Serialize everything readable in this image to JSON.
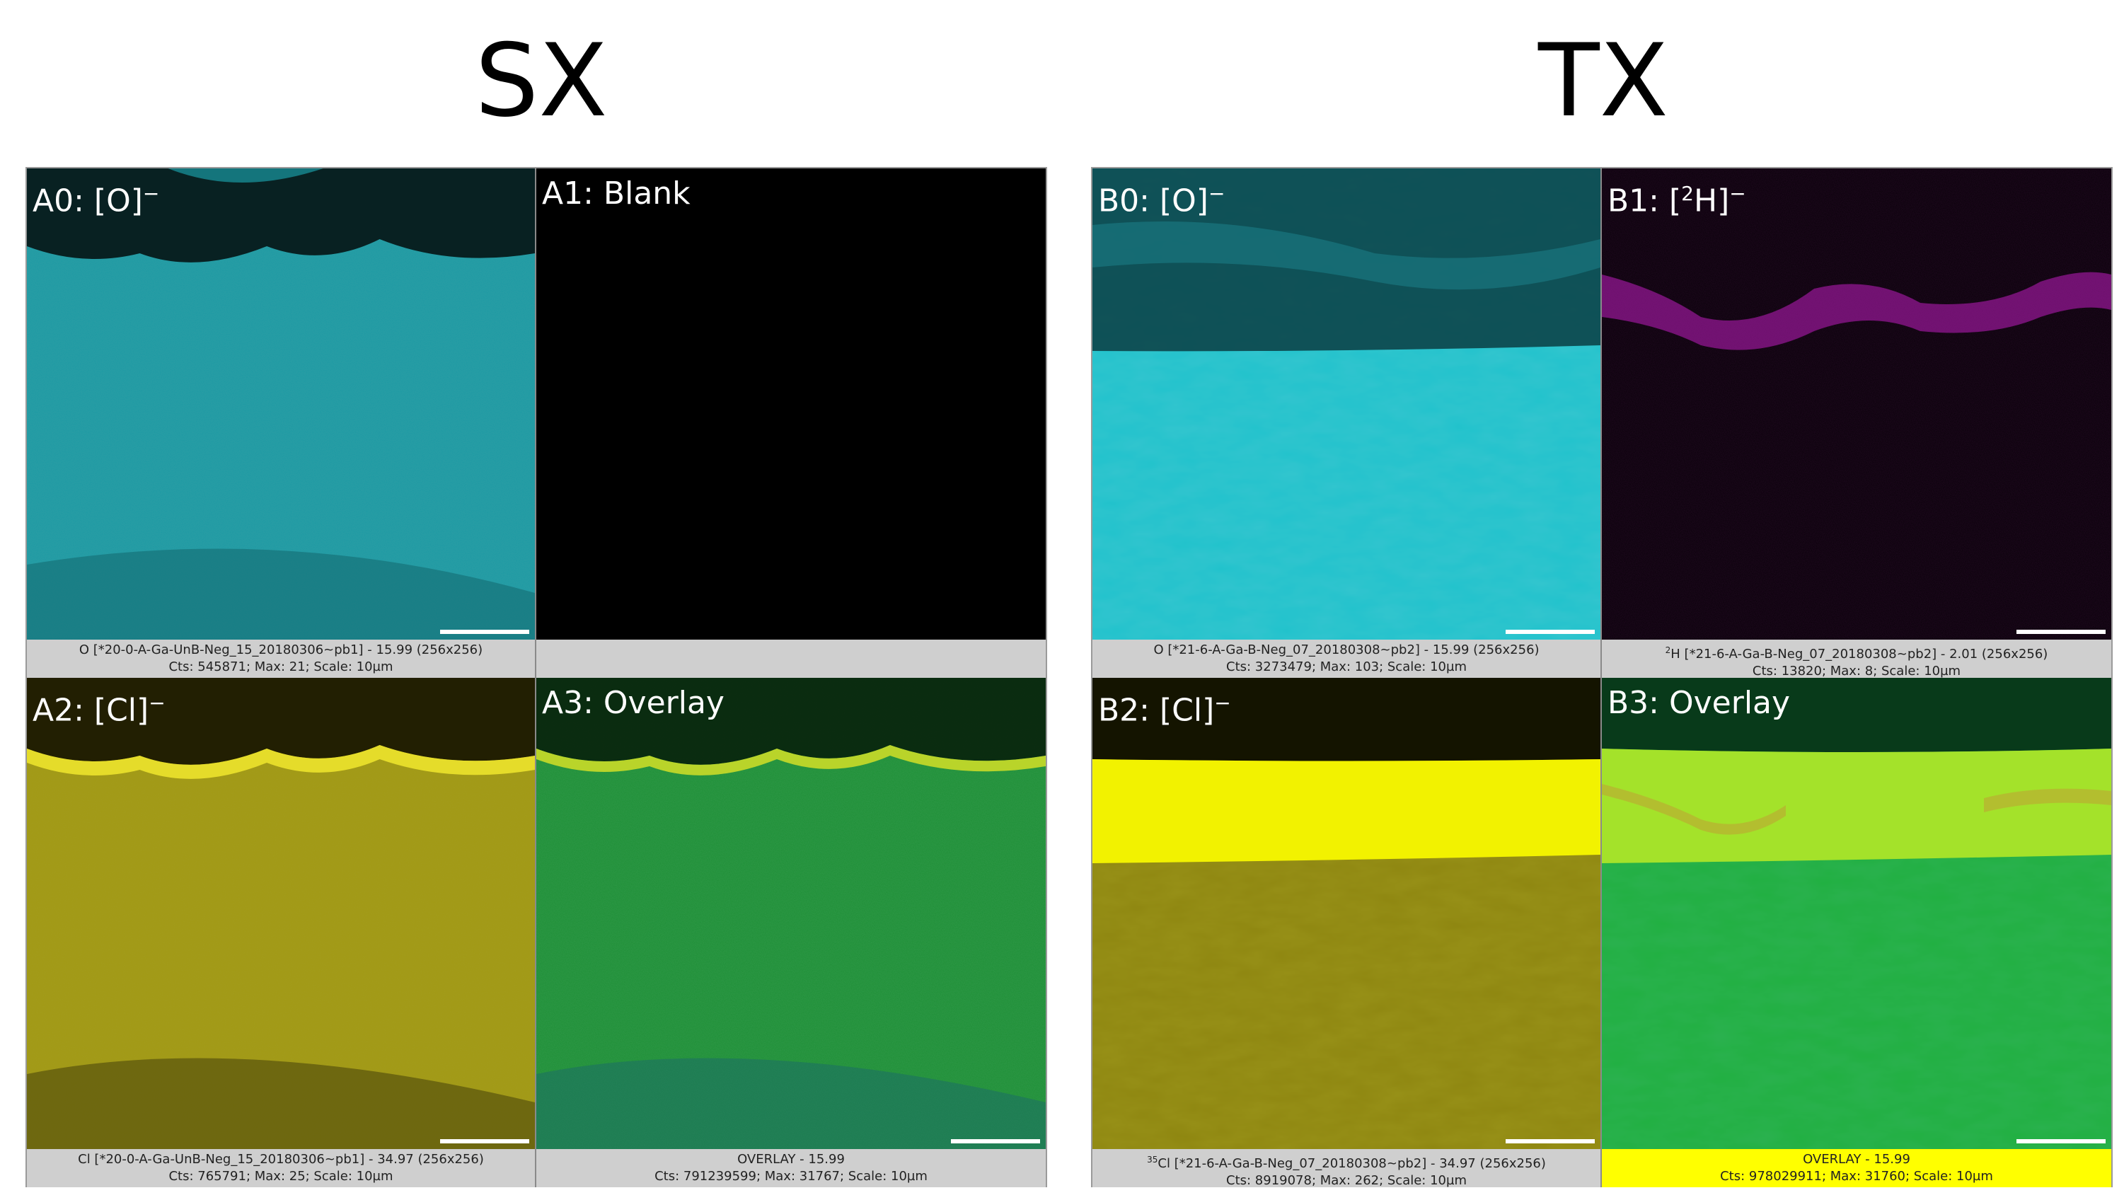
{
  "figure": {
    "sx": {
      "title": "SX",
      "panels": [
        {
          "label": "A0: [O]",
          "label_sup": "−",
          "caption_line1": "O [*20-0-A-Ga-UnB-Neg_15_20180306~pb1] -  15.99 (256x256)",
          "caption_line2": "Cts: 545871; Max: 21; Scale: 10µm",
          "color": "#1fb8bd"
        },
        {
          "label": "A1: Blank",
          "label_sup": "",
          "caption_line1": "",
          "caption_line2": "",
          "color": "#000000"
        },
        {
          "label": "A2: [Cl]",
          "label_sup": "−",
          "caption_line1": "Cl [*20-0-A-Ga-UnB-Neg_15_20180306~pb1] -  34.97 (256x256)",
          "caption_line2": "Cts: 765791; Max: 25; Scale: 10µm",
          "color": "#b8ad14"
        },
        {
          "label": "A3: Overlay",
          "label_sup": "",
          "caption_line1": "OVERLAY -  15.99",
          "caption_line2": "Cts: 791239599; Max: 31767; Scale: 10µm",
          "color": "#1e9a3a"
        }
      ]
    },
    "tx": {
      "title": "TX",
      "panels": [
        {
          "label": "B0: [O]",
          "label_sup": "−",
          "caption_line1": "O [*21-6-A-Ga-B-Neg_07_20180308~pb2] -  15.99 (256x256)",
          "caption_line2": "Cts: 3273479; Max: 103; Scale: 10µm",
          "color": "#1fc4cc"
        },
        {
          "label": "B1: [",
          "label_sup": "2",
          "label_tail": "H]",
          "label_tail_sup": "−",
          "caption_line1_sup": "2",
          "caption_line1": "H [*21-6-A-Ga-B-Neg_07_20180308~pb2] -  2.01 (256x256)",
          "caption_line2": "Cts: 13820; Max: 8; Scale: 10µm",
          "color": "#b01ab0"
        },
        {
          "label": "B2: [Cl]",
          "label_sup": "−",
          "caption_line1_sup": "35",
          "caption_line1": "Cl [*21-6-A-Ga-B-Neg_07_20180308~pb2] -  34.97 (256x256)",
          "caption_line2": "Cts: 8919078; Max: 262; Scale: 10µm",
          "color": "#ecec00"
        },
        {
          "label": "B3: Overlay",
          "label_sup": "",
          "caption_line1": "OVERLAY -  15.99",
          "caption_line2": "Cts: 978029911; Max: 31760; Scale: 10µm",
          "color": "#21b043"
        }
      ]
    }
  }
}
